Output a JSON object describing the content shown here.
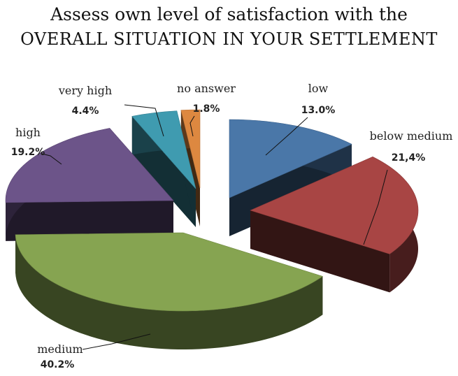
{
  "chart_data": {
    "type": "pie",
    "title": [
      "Assess own level of satisfaction with the",
      "OVERALL SITUATION IN YOUR SETTLEMENT"
    ],
    "slices": [
      {
        "label": "low",
        "value_label": "13.0%",
        "value": 13.0,
        "color": "#4a77a8"
      },
      {
        "label": "below medium",
        "value_label": "21,4%",
        "value": 21.4,
        "color": "#a84544"
      },
      {
        "label": "medium",
        "value_label": "40.2%",
        "value": 40.2,
        "color": "#86a451"
      },
      {
        "label": "high",
        "value_label": "19.2%",
        "value": 19.2,
        "color": "#6c5489"
      },
      {
        "label": "very high",
        "value_label": "4.4%",
        "value": 4.4,
        "color": "#3f9bb0"
      },
      {
        "label": "no answer",
        "value_label": "1.8%",
        "value": 1.8,
        "color": "#dd8840"
      }
    ],
    "legend": "none",
    "style": "3d-exploded"
  }
}
